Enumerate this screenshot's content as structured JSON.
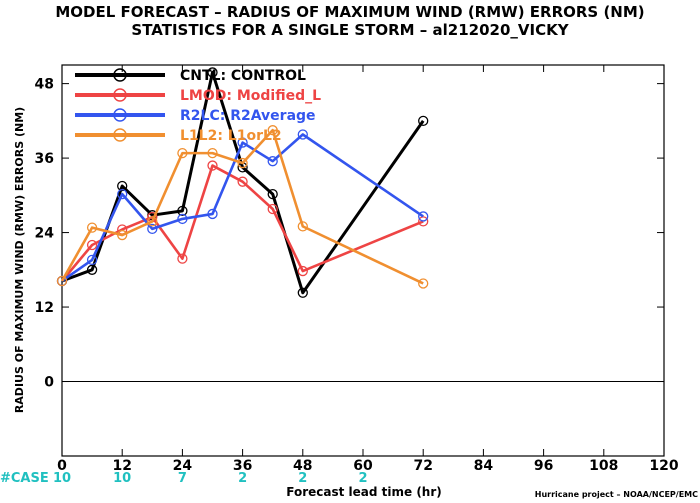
{
  "chart_data": {
    "type": "line",
    "title": "MODEL FORECAST – RADIUS OF MAXIMUM WIND (RMW) ERRORS (NM)",
    "subtitle": "STATISTICS FOR A SINGLE STORM – al212020_VICKY",
    "xlabel": "Forecast lead time (hr)",
    "ylabel": "RADIUS OF MAXIMUM WIND (RMW) ERRORS (NM)",
    "xlim": [
      0,
      120
    ],
    "ylim": [
      -12,
      51
    ],
    "xticks": [
      "0",
      "12",
      "24",
      "36",
      "48",
      "60",
      "72",
      "84",
      "96",
      "108",
      "120"
    ],
    "xtick_values": [
      0,
      12,
      24,
      36,
      48,
      60,
      72,
      84,
      96,
      108,
      120
    ],
    "yticks": [
      "0",
      "12",
      "24",
      "36",
      "48"
    ],
    "ytick_values": [
      0,
      12,
      24,
      36,
      48
    ],
    "zero_line": true,
    "grid": false,
    "legend_position": "top-left",
    "case_label": "#CASE",
    "case_counts": [
      {
        "x": 0,
        "label": "10"
      },
      {
        "x": 12,
        "label": "10"
      },
      {
        "x": 24,
        "label": "7"
      },
      {
        "x": 36,
        "label": "2"
      },
      {
        "x": 48,
        "label": "2"
      },
      {
        "x": 60,
        "label": "2"
      }
    ],
    "series": [
      {
        "name": "CNTL: CONTROL",
        "color": "#000000",
        "x": [
          0,
          6,
          12,
          18,
          24,
          30,
          36,
          42,
          48,
          72
        ],
        "y": [
          16.2,
          18.0,
          31.5,
          26.8,
          27.5,
          49.8,
          34.5,
          30.2,
          14.3,
          42.0
        ]
      },
      {
        "name": "LMOD: Modified_L",
        "color": "#ee4444",
        "x": [
          0,
          6,
          12,
          18,
          24,
          30,
          36,
          42,
          48,
          72
        ],
        "y": [
          16.2,
          22.0,
          24.5,
          26.5,
          19.8,
          34.8,
          32.2,
          27.8,
          17.8,
          25.8
        ]
      },
      {
        "name": "R2LC: R2Average",
        "color": "#3355ee",
        "x": [
          0,
          6,
          12,
          18,
          24,
          30,
          36,
          42,
          48,
          72
        ],
        "y": [
          16.2,
          19.6,
          30.2,
          24.6,
          26.2,
          27.0,
          38.5,
          35.5,
          39.8,
          26.6
        ]
      },
      {
        "name": "L1L2: L1orL2",
        "color": "#f08f30",
        "x": [
          0,
          6,
          12,
          18,
          24,
          30,
          36,
          42,
          48,
          72
        ],
        "y": [
          16.2,
          24.8,
          23.6,
          25.8,
          36.8,
          36.8,
          35.2,
          40.5,
          25.0,
          15.8
        ]
      }
    ]
  },
  "credit": "Hurricane project – NOAA/NCEP/EMC",
  "colors": {
    "case_label": "#20c0c0",
    "axis": "#000000",
    "zero_line": "#000000"
  }
}
